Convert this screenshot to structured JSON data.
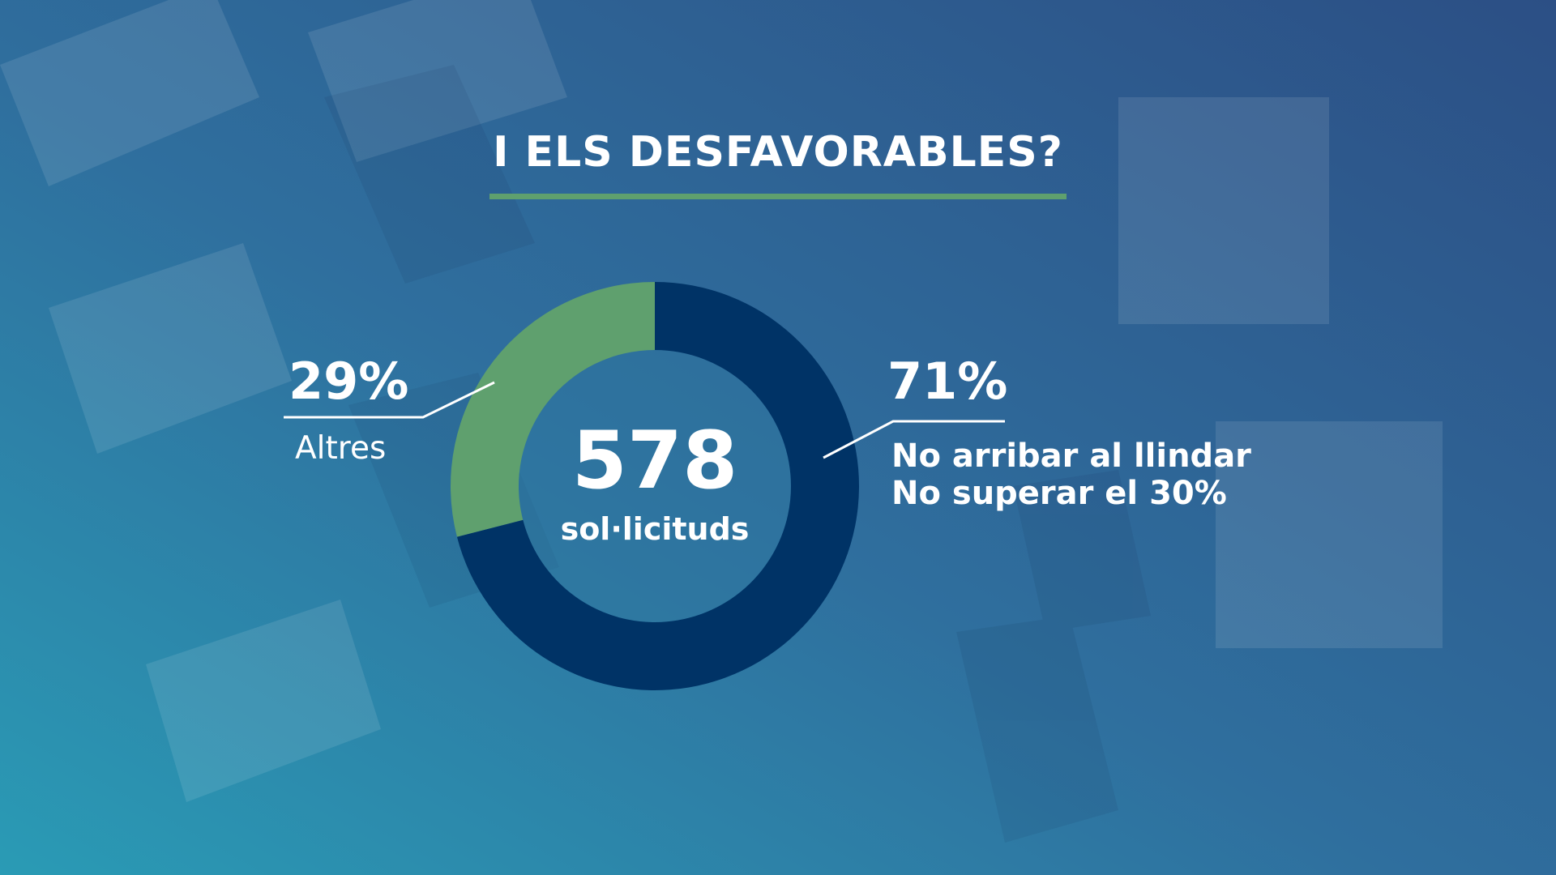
{
  "title": "I ELS DESFAVORABLES?",
  "colors": {
    "accent_green": "#5fa06e",
    "navy": "#003366",
    "background_top": "#2a5a8a",
    "background_left": "#2a9bb5"
  },
  "chart_data": {
    "type": "pie",
    "variant": "donut",
    "center_value": "578",
    "center_label": "sol·licituds",
    "slices": [
      {
        "label": "No arribar al llindar\nNo superar el 30%",
        "value": 71,
        "display": "71%",
        "color": "#003366"
      },
      {
        "label": "Altres",
        "value": 29,
        "display": "29%",
        "color": "#5fa06e"
      }
    ],
    "legend": "callouts"
  }
}
